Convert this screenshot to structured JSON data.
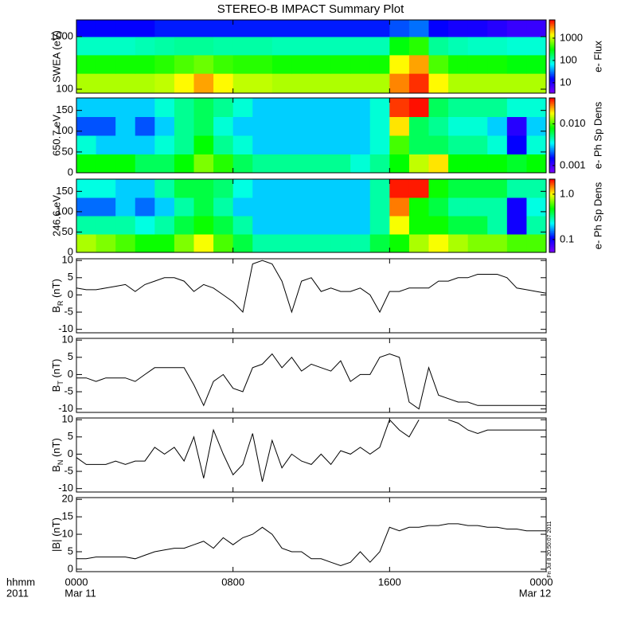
{
  "title": "STEREO-B IMPACT Summary Plot",
  "stamp": "Fri Jul 8 20:50:07 2011",
  "x_axis": {
    "xlim": [
      0,
      24
    ],
    "xticks": [
      {
        "value": 0,
        "label": "0000"
      },
      {
        "value": 8,
        "label": "0800"
      },
      {
        "value": 16,
        "label": "1600"
      },
      {
        "value": 24,
        "label": "0000"
      }
    ],
    "date_ticks": [
      {
        "value": 0,
        "label": "Mar 11"
      },
      {
        "value": 24,
        "label": "Mar 12"
      }
    ],
    "row_labels": [
      "hhmm",
      "2011"
    ]
  },
  "chart_data": [
    {
      "type": "heatmap",
      "ylabel": "SWEA (eV)",
      "ylog": true,
      "ylim": [
        84,
        2080
      ],
      "yticks": [
        100,
        1000
      ],
      "xbins": [
        0,
        1,
        2,
        3,
        4,
        5,
        6,
        7,
        8,
        9,
        10,
        11,
        12,
        13,
        14,
        15,
        16,
        17,
        18,
        19,
        20,
        21,
        22,
        23,
        24
      ],
      "ybins": [
        84,
        200,
        450,
        1000,
        2080
      ],
      "values": [
        [
          900,
          900,
          900,
          900,
          1000,
          1500,
          2500,
          1500,
          1000,
          1000,
          900,
          900,
          900,
          900,
          900,
          900,
          3000,
          5000,
          1500,
          900,
          900,
          900,
          900,
          900
        ],
        [
          350,
          350,
          350,
          350,
          400,
          500,
          600,
          450,
          400,
          400,
          350,
          350,
          350,
          350,
          350,
          350,
          1500,
          2500,
          500,
          350,
          350,
          350,
          300,
          300
        ],
        [
          100,
          100,
          100,
          110,
          120,
          130,
          130,
          120,
          120,
          120,
          110,
          110,
          110,
          110,
          110,
          110,
          300,
          400,
          130,
          110,
          100,
          100,
          90,
          90
        ],
        [
          15,
          15,
          15,
          15,
          18,
          18,
          18,
          18,
          18,
          18,
          18,
          18,
          18,
          18,
          18,
          18,
          25,
          30,
          15,
          12,
          12,
          10,
          8,
          8
        ]
      ],
      "clim": [
        3.4,
        6600
      ],
      "cticks": [
        10,
        100,
        1000
      ],
      "clabel": "e- Flux",
      "colormap": [
        "#7f00ff",
        "#0000ff",
        "#00ffff",
        "#00ff00",
        "#ffff00",
        "#ff0000"
      ]
    },
    {
      "type": "heatmap",
      "ylabel": "650.7 eV",
      "ylog": false,
      "ylim": [
        0,
        180
      ],
      "yticks": [
        0,
        50,
        100,
        150
      ],
      "xbins": [
        0,
        1,
        2,
        3,
        4,
        5,
        6,
        7,
        8,
        9,
        10,
        11,
        12,
        13,
        14,
        15,
        16,
        17,
        18,
        19,
        20,
        21,
        22,
        23,
        24
      ],
      "ybins": [
        0,
        45,
        90,
        135,
        180
      ],
      "values": [
        [
          0.008,
          0.008,
          0.008,
          0.006,
          0.006,
          0.008,
          0.012,
          0.009,
          0.006,
          0.005,
          0.005,
          0.005,
          0.005,
          0.005,
          0.004,
          0.005,
          0.008,
          0.015,
          0.02,
          0.008,
          0.008,
          0.008,
          0.007,
          0.008
        ],
        [
          0.004,
          0.003,
          0.003,
          0.003,
          0.004,
          0.005,
          0.008,
          0.005,
          0.004,
          0.003,
          0.003,
          0.003,
          0.003,
          0.003,
          0.003,
          0.004,
          0.01,
          0.006,
          0.006,
          0.005,
          0.005,
          0.004,
          0.0015,
          0.004
        ],
        [
          0.002,
          0.002,
          0.003,
          0.002,
          0.003,
          0.005,
          0.006,
          0.004,
          0.003,
          0.003,
          0.003,
          0.003,
          0.003,
          0.003,
          0.003,
          0.004,
          0.02,
          0.006,
          0.005,
          0.004,
          0.004,
          0.003,
          0.0012,
          0.003
        ],
        [
          0.003,
          0.003,
          0.003,
          0.003,
          0.004,
          0.005,
          0.006,
          0.005,
          0.004,
          0.003,
          0.003,
          0.003,
          0.003,
          0.003,
          0.003,
          0.004,
          0.035,
          0.04,
          0.006,
          0.005,
          0.005,
          0.005,
          0.004,
          0.004
        ]
      ],
      "clim": [
        0.00067,
        0.042
      ],
      "cticks": [
        0.001,
        {
          "value": 0.01,
          "label": "0.010"
        }
      ],
      "clabel": "e- Ph Sp Dens",
      "colormap": [
        "#7f00ff",
        "#0000ff",
        "#00ffff",
        "#00ff00",
        "#ffff00",
        "#ff0000"
      ]
    },
    {
      "type": "heatmap",
      "ylabel": "246.6 eV",
      "ylog": false,
      "ylim": [
        0,
        180
      ],
      "yticks": [
        0,
        50,
        100,
        150
      ],
      "xbins": [
        0,
        1,
        2,
        3,
        4,
        5,
        6,
        7,
        8,
        9,
        10,
        11,
        12,
        13,
        14,
        15,
        16,
        17,
        18,
        19,
        20,
        21,
        22,
        23,
        24
      ],
      "ybins": [
        0,
        45,
        90,
        135,
        180
      ],
      "values": [
        [
          0.8,
          0.7,
          0.6,
          0.5,
          0.5,
          0.7,
          1.0,
          0.6,
          0.4,
          0.3,
          0.3,
          0.3,
          0.3,
          0.3,
          0.3,
          0.4,
          0.5,
          0.8,
          1.0,
          0.8,
          0.7,
          0.7,
          0.6,
          0.6
        ],
        [
          0.3,
          0.3,
          0.3,
          0.25,
          0.3,
          0.4,
          0.5,
          0.4,
          0.3,
          0.2,
          0.2,
          0.2,
          0.2,
          0.2,
          0.2,
          0.3,
          1.0,
          0.5,
          0.5,
          0.4,
          0.4,
          0.3,
          0.1,
          0.3
        ],
        [
          0.15,
          0.15,
          0.2,
          0.15,
          0.2,
          0.3,
          0.4,
          0.3,
          0.2,
          0.2,
          0.2,
          0.2,
          0.2,
          0.2,
          0.2,
          0.3,
          1.5,
          0.5,
          0.4,
          0.3,
          0.3,
          0.3,
          0.1,
          0.25
        ],
        [
          0.25,
          0.25,
          0.2,
          0.2,
          0.3,
          0.4,
          0.4,
          0.35,
          0.25,
          0.2,
          0.2,
          0.2,
          0.2,
          0.2,
          0.2,
          0.3,
          2.0,
          2.0,
          0.5,
          0.4,
          0.4,
          0.4,
          0.3,
          0.3
        ]
      ],
      "clim": [
        0.052,
        2.15
      ],
      "cticks": [
        0.1,
        {
          "value": 1,
          "label": "1.0"
        }
      ],
      "clabel": "e- Ph Sp Dens",
      "colormap": [
        "#7f00ff",
        "#0000ff",
        "#00ffff",
        "#00ff00",
        "#ffff00",
        "#ff0000"
      ]
    },
    {
      "type": "line",
      "ylabel": {
        "base": "B",
        "sub": "R",
        "unit": " (nT)"
      },
      "ylim": [
        -11,
        10.5
      ],
      "yticks": [
        -10,
        -5,
        0,
        5,
        10
      ],
      "color": "#000000",
      "x": [
        0,
        0.5,
        1,
        1.5,
        2,
        2.5,
        3,
        3.5,
        4,
        4.5,
        5,
        5.5,
        6,
        6.5,
        7,
        7.5,
        8,
        8.5,
        9,
        9.5,
        10,
        10.5,
        11,
        11.5,
        12,
        12.5,
        13,
        13.5,
        14,
        14.5,
        15,
        15.5,
        16,
        16.5,
        17,
        17.5,
        18,
        18.5,
        19,
        19.5,
        20,
        20.5,
        21,
        21.5,
        22,
        22.5,
        23,
        23.5,
        24
      ],
      "values": [
        2,
        1.5,
        1.5,
        2,
        2.5,
        3,
        1,
        3,
        4,
        5,
        5,
        4,
        1,
        3,
        2,
        0,
        -2,
        -5,
        9,
        10,
        9,
        4,
        -5,
        4,
        5,
        1,
        2,
        1,
        1,
        2,
        0,
        -5,
        1,
        1,
        2,
        2,
        2,
        4,
        4,
        5,
        5,
        6,
        6,
        6,
        5,
        2,
        1.5,
        1,
        0.5
      ]
    },
    {
      "type": "line",
      "ylabel": {
        "base": "B",
        "sub": "T",
        "unit": " (nT)"
      },
      "ylim": [
        -11,
        10.5
      ],
      "yticks": [
        -10,
        -5,
        0,
        5,
        10
      ],
      "color": "#000000",
      "x": [
        0,
        0.5,
        1,
        1.5,
        2,
        2.5,
        3,
        3.5,
        4,
        4.5,
        5,
        5.5,
        6,
        6.5,
        7,
        7.5,
        8,
        8.5,
        9,
        9.5,
        10,
        10.5,
        11,
        11.5,
        12,
        12.5,
        13,
        13.5,
        14,
        14.5,
        15,
        15.5,
        16,
        16.5,
        17,
        17.5,
        18,
        18.5,
        19,
        19.5,
        20,
        20.5,
        21,
        21.5,
        22,
        22.5,
        23,
        23.5,
        24
      ],
      "values": [
        -1,
        -1,
        -2,
        -1,
        -1,
        -1,
        -2,
        0,
        2,
        2,
        2,
        2,
        -3,
        -9,
        -2,
        0,
        -4,
        -5,
        2,
        3,
        6,
        2,
        5,
        1,
        3,
        2,
        1,
        4,
        -2,
        0,
        0,
        5,
        6,
        5,
        -8,
        -10,
        2,
        -6,
        -7,
        -8,
        -8,
        -9,
        -9,
        -9,
        -9,
        -9,
        -9,
        -9,
        -9
      ]
    },
    {
      "type": "line",
      "ylabel": {
        "base": "B",
        "sub": "N",
        "unit": " (nT)"
      },
      "ylim": [
        -11,
        10.5
      ],
      "yticks": [
        -10,
        -5,
        0,
        5,
        10
      ],
      "color": "#000000",
      "x": [
        0,
        0.5,
        1,
        1.5,
        2,
        2.5,
        3,
        3.5,
        4,
        4.5,
        5,
        5.5,
        6,
        6.5,
        7,
        7.5,
        8,
        8.5,
        9,
        9.5,
        10,
        10.5,
        11,
        11.5,
        12,
        12.5,
        13,
        13.5,
        14,
        14.5,
        15,
        15.5,
        16,
        16.5,
        17,
        17.5,
        18,
        18.5,
        19,
        19.5,
        20,
        20.5,
        21,
        21.5,
        22,
        22.5,
        23,
        23.5,
        24
      ],
      "values": [
        -1,
        -3,
        -3,
        -3,
        -2,
        -3,
        -2,
        -2,
        2,
        0,
        2,
        -2,
        5,
        -7,
        7,
        0,
        -6,
        -3,
        6,
        -8,
        4,
        -4,
        0,
        -2,
        -3,
        0,
        -3,
        1,
        0,
        2,
        0,
        2,
        10,
        7,
        5,
        10,
        null,
        null,
        10,
        9,
        7,
        6,
        7,
        7,
        7,
        7,
        7,
        7,
        7
      ]
    },
    {
      "type": "line",
      "ylabel": {
        "base": "|B|",
        "sub": "",
        "unit": " (nT)"
      },
      "ylim": [
        -0.7,
        20.5
      ],
      "yticks": [
        0,
        5,
        10,
        15,
        20
      ],
      "color": "#000000",
      "x": [
        0,
        0.5,
        1,
        1.5,
        2,
        2.5,
        3,
        3.5,
        4,
        4.5,
        5,
        5.5,
        6,
        6.5,
        7,
        7.5,
        8,
        8.5,
        9,
        9.5,
        10,
        10.5,
        11,
        11.5,
        12,
        12.5,
        13,
        13.5,
        14,
        14.5,
        15,
        15.5,
        16,
        16.5,
        17,
        17.5,
        18,
        18.5,
        19,
        19.5,
        20,
        20.5,
        21,
        21.5,
        22,
        22.5,
        23,
        23.5,
        24
      ],
      "values": [
        3,
        3,
        3.5,
        3.5,
        3.5,
        3.5,
        3,
        4,
        5,
        5.5,
        6,
        6,
        7,
        8,
        6,
        9,
        7,
        9,
        10,
        12,
        10,
        6,
        5,
        5,
        3,
        3,
        2,
        1,
        2,
        5,
        2,
        5,
        12,
        11,
        12,
        12,
        12.5,
        12.5,
        13,
        13,
        12.5,
        12.5,
        12,
        12,
        11.5,
        11.5,
        11,
        11,
        11
      ]
    }
  ]
}
